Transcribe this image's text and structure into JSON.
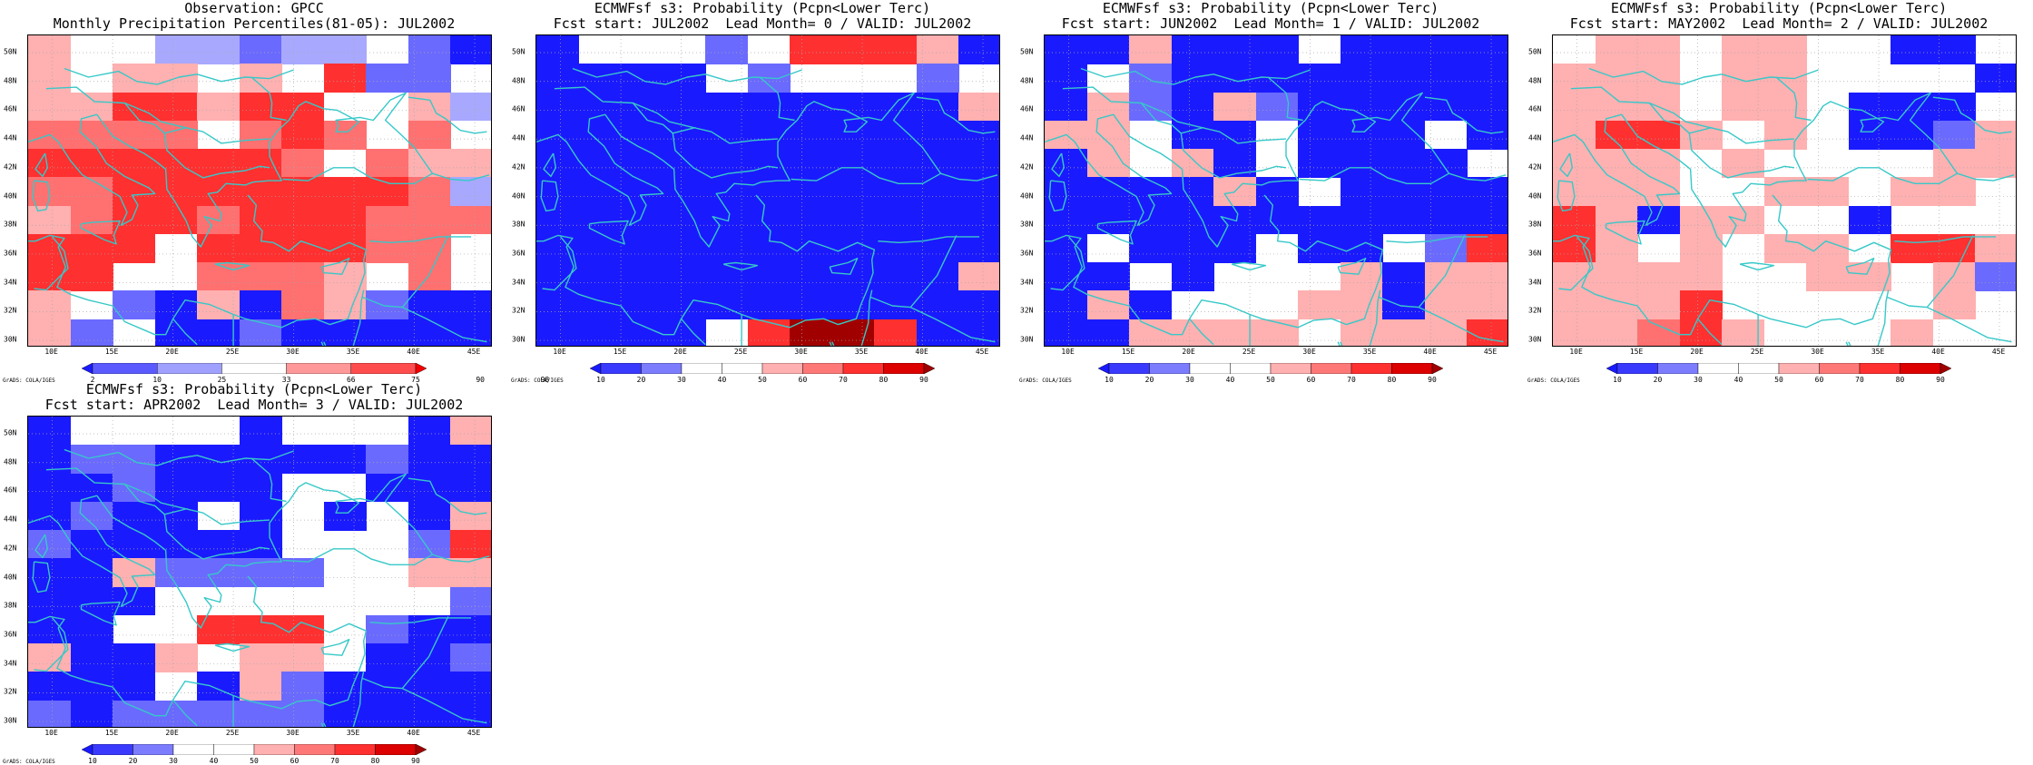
{
  "palettes": {
    "gpcc": [
      "#1b1bff",
      "#5a5aff",
      "#a0a0ff",
      "#ffffff",
      "#ff9898",
      "#ff4c4c",
      "#f20000"
    ],
    "prob": [
      "#1a1aff",
      "#3a3aff",
      "#7c7cff",
      "#ffffff",
      "#ffffff",
      "#ffb0b0",
      "#ff7878",
      "#ff3030",
      "#dc0000",
      "#a00000"
    ]
  },
  "color_keys": {
    ".": "#ffffff",
    "B": "#1a1aff",
    "b": "#6a6aff",
    "l": "#a8a8ff",
    "p": "#ffb0b0",
    "r": "#ff7070",
    "R": "#ff3030",
    "D": "#a00000"
  },
  "coast_color": "#37c8c8",
  "x_ticks": [
    "10E",
    "15E",
    "20E",
    "25E",
    "30E",
    "35E",
    "40E",
    "45E"
  ],
  "y_ticks": [
    "50N",
    "48N",
    "46N",
    "44N",
    "42N",
    "40N",
    "38N",
    "36N",
    "34N",
    "32N",
    "30N"
  ],
  "credit": "GrADS: COLA/IGES",
  "panels": [
    {
      "title1": "Observation: GPCC",
      "title2": "Monthly Precipitation Percentiles(81-05): JUL2002",
      "colorbar_labels": [
        "2",
        "10",
        "25",
        "33",
        "66",
        "75",
        "90",
        "98"
      ],
      "palette": "gpcc",
      "grid": [
        "p..llbll.bB",
        "p.pp.p.Rbb.",
        "ppRRpRR..pl",
        "rrrr.rRr.r.",
        "RRRRRRr.rpp",
        "rrRRRRRRRrl",
        "prRRrRRRrrr",
        "RRR.RRRRrr.",
        "RR..rrrp.r.",
        "p.bBpBrpbBB",
        "pb.BBbBBBBB"
      ]
    },
    {
      "title1": "ECMWFsf s3: Probability (Pcpn<Lower Terc)",
      "title2": "Fcst start: JUL2002  Lead Month= 0 / VALID: JUL2002",
      "colorbar_labels": [
        "10",
        "20",
        "30",
        "40",
        "50",
        "60",
        "70",
        "80",
        "90"
      ],
      "palette": "prob",
      "grid": [
        "B...b.RRRpB",
        "BBBB.b...b.",
        "BBBBBBBBBBp",
        "BBBBBBBBBBB",
        "BBBBBBBBBBB",
        "BBBBBBBBBBB",
        "BBBBBBBBBBB",
        "BBBBBBBBBBB",
        "BBBBBBBBBBp",
        "BBBBBBBBBBB",
        "BBBB.RDDRBB"
      ]
    },
    {
      "title1": "ECMWFsf s3: Probability (Pcpn<Lower Terc)",
      "title2": "Fcst start: JUN2002  Lead Month= 1 / VALID: JUL2002",
      "colorbar_labels": [
        "10",
        "20",
        "30",
        "40",
        "50",
        "60",
        "70",
        "80",
        "90"
      ],
      "palette": "prob",
      "grid": [
        "BBpBBB.BBBB",
        "B.bBBBBBBBB",
        "BpbBpbBBBBB",
        "pp.BB.BBB.B",
        "Bp.pB.BBBB.",
        "BBBBpB.BBBB",
        "BBBBBBBBBBB",
        "B.BBB.BB.bR",
        "BB.B...pBpp",
        "BpB...ppBpp",
        "BBpppp.pppR"
      ]
    },
    {
      "title1": "ECMWFsf s3: Probability (Pcpn<Lower Terc)",
      "title2": "Fcst start: MAY2002  Lead Month= 2 / VALID: JUL2002",
      "colorbar_labels": [
        "10",
        "20",
        "30",
        "40",
        "50",
        "60",
        "70",
        "80",
        "90"
      ],
      "palette": "prob",
      "grid": [
        ".pp.pp..BB.",
        "ppp.pp....B",
        "ppp.pp.BBB.",
        "pRRp.p.BBbp",
        "ppp.p....pp",
        "ppp..pp.pp.",
        "RpBpp..B...",
        "Rp.p.pp.RRp",
        "pppp..pp.pb",
        "pppR.....p.",
        "pprRp...p.."
      ]
    },
    {
      "title1": "ECMWFsf s3: Probability (Pcpn<Lower Terc)",
      "title2": "Fcst start: APR2002  Lead Month= 3 / VALID: JUL2002",
      "colorbar_labels": [
        "10",
        "20",
        "30",
        "40",
        "50",
        "60",
        "70",
        "80",
        "90"
      ],
      "palette": "prob",
      "grid": [
        "B....B...Bp",
        "BbbBBBBBbBB",
        "BBbBBB..BBB",
        "BbBB.B.B.Bp",
        "bBBBBB...bR",
        "BBpbbbb..pp",
        "BBB.......b",
        "BB..RRR.bBB",
        "pBBp.pp.BBb",
        "BBB.BpbBBBB",
        "bBbbbbbBBBB"
      ]
    }
  ]
}
